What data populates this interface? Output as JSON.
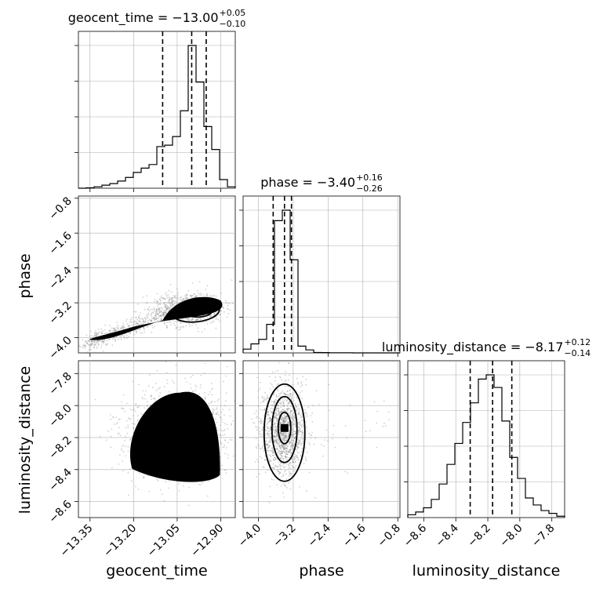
{
  "chart_data": {
    "type": "corner",
    "parameters": [
      "geocent_time",
      "phase",
      "luminosity_distance"
    ],
    "titles": [
      {
        "param": "geocent_time",
        "prefix": "geocent_time = −13.00",
        "plus": "+0.05",
        "minus": "−0.10"
      },
      {
        "param": "phase",
        "prefix": "phase = −3.40",
        "plus": "+0.16",
        "minus": "−0.26"
      },
      {
        "param": "luminosity_distance",
        "prefix": "luminosity_distance = −8.17",
        "plus": "+0.12",
        "minus": "−0.14"
      }
    ],
    "axes": {
      "geocent_time": {
        "range": [
          -13.39,
          -12.85
        ],
        "ticks": [
          -13.35,
          -13.2,
          -13.05,
          -12.9
        ],
        "tick_labels": [
          "−13.35",
          "−13.20",
          "−13.05",
          "−12.90"
        ],
        "label": "geocent_time"
      },
      "phase": {
        "range": [
          -4.35,
          -0.75
        ],
        "ticks": [
          -4.0,
          -3.2,
          -2.4,
          -1.6,
          -0.8
        ],
        "tick_labels": [
          "−4.0",
          "−3.2",
          "−2.4",
          "−1.6",
          "−0.8"
        ],
        "label": "phase"
      },
      "luminosity_distance": {
        "range": [
          -8.7,
          -7.72
        ],
        "ticks": [
          -8.6,
          -8.4,
          -8.2,
          -8.0,
          -7.8
        ],
        "tick_labels": [
          "−8.6",
          "−8.4",
          "−8.2",
          "−8.0",
          "−7.8"
        ],
        "label": "luminosity_distance"
      }
    },
    "grid": true,
    "histograms": [
      {
        "param": "geocent_time",
        "bin_edges": [
          -13.39,
          -13.363,
          -13.336,
          -13.309,
          -13.282,
          -13.255,
          -13.228,
          -13.201,
          -13.174,
          -13.147,
          -13.12,
          -13.093,
          -13.066,
          -13.039,
          -13.012,
          -12.985,
          -12.958,
          -12.931,
          -12.904,
          -12.877,
          -12.85
        ],
        "counts": [
          0.0,
          0.3,
          1.0,
          2.1,
          3.2,
          5.0,
          7.5,
          11.0,
          14.0,
          16.5,
          29.0,
          30.0,
          36.0,
          54.0,
          99.5,
          74.0,
          43.0,
          27.0,
          6.0,
          1.0
        ],
        "quantiles": [
          -13.1,
          -13.0,
          -12.95
        ]
      },
      {
        "param": "phase",
        "bin_edges": [
          -4.35,
          -4.17,
          -3.99,
          -3.81,
          -3.63,
          -3.45,
          -3.27,
          -3.09,
          -2.91,
          -2.73,
          -2.55,
          -2.37,
          -2.19,
          -2.01,
          -1.83,
          -1.65,
          -1.47,
          -1.29,
          -1.11,
          -0.93,
          -0.75
        ],
        "counts": [
          2.5,
          6.0,
          9.0,
          19.0,
          88.0,
          95.0,
          62.0,
          4.5,
          2.0,
          0.3,
          0.2,
          0.1,
          0.1,
          0.1,
          0.0,
          0.0,
          0.0,
          0.0,
          0.0,
          0.0
        ],
        "quantiles": [
          -3.66,
          -3.4,
          -3.24
        ]
      },
      {
        "param": "luminosity_distance",
        "bin_edges": [
          -8.7,
          -8.651,
          -8.602,
          -8.553,
          -8.504,
          -8.455,
          -8.406,
          -8.357,
          -8.308,
          -8.259,
          -8.21,
          -8.161,
          -8.112,
          -8.063,
          -8.014,
          -7.965,
          -7.916,
          -7.867,
          -7.818,
          -7.769,
          -7.72
        ],
        "counts": [
          2.0,
          4.0,
          7.0,
          13.0,
          24.0,
          38.0,
          53.0,
          68.0,
          82.0,
          99.0,
          102.0,
          93.0,
          69.0,
          43.0,
          28.0,
          14.0,
          9.0,
          5.0,
          3.0,
          1.0
        ],
        "quantiles": [
          -8.31,
          -8.17,
          -8.05
        ]
      }
    ],
    "joint_2d": [
      {
        "x": "geocent_time",
        "y": "phase",
        "peak": [
          -12.98,
          -3.4
        ]
      },
      {
        "x": "geocent_time",
        "y": "luminosity_distance",
        "peak": [
          -13.0,
          -8.14
        ]
      },
      {
        "x": "phase",
        "y": "luminosity_distance",
        "peak": [
          -3.4,
          -8.14
        ]
      }
    ]
  }
}
